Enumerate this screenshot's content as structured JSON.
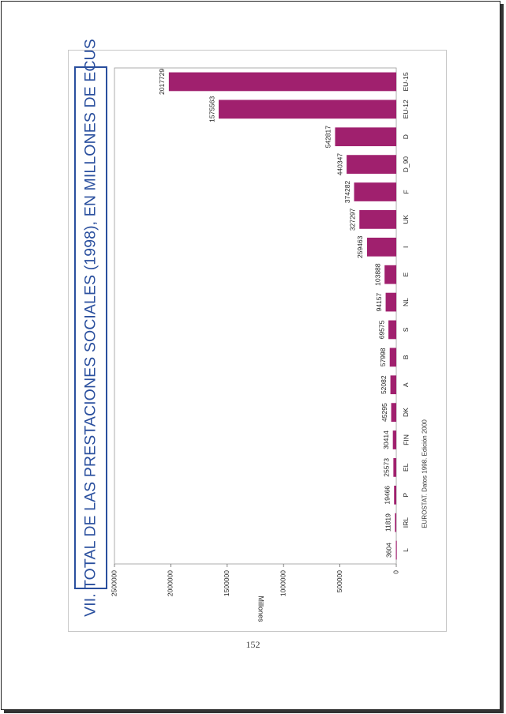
{
  "page": {
    "page_number": "152",
    "source": "EUROSTAT. Datos 1998. Edición 2000"
  },
  "chart_data": {
    "type": "bar",
    "orientation": "horizontal-rotated",
    "title": "VII. TOTAL DE LAS PRESTACIONES SOCIALES (1998), EN MILLONES DE ECUS",
    "ylabel": "Millones",
    "ylim": [
      0,
      2500000
    ],
    "yticks": [
      "0",
      "500000",
      "1000000",
      "1500000",
      "2000000",
      "2500000"
    ],
    "categories": [
      "L",
      "IRL",
      "P",
      "EL",
      "FIN",
      "DK",
      "A",
      "B",
      "S",
      "NL",
      "E",
      "I",
      "UK",
      "F",
      "D_90",
      "D",
      "EU-12",
      "EU-15"
    ],
    "values": [
      3604,
      11819,
      19466,
      25573,
      30414,
      45295,
      52082,
      57998,
      69575,
      94157,
      103888,
      259463,
      327297,
      374282,
      440347,
      542817,
      1575563,
      2017729
    ],
    "value_labels": [
      "3604",
      "11819",
      "19466",
      "25573",
      "30414",
      "45295",
      "52082",
      "57998",
      "69575",
      "94157",
      "103888",
      "259463",
      "327297",
      "374282",
      "440347",
      "542817",
      "1575563",
      "2017729"
    ],
    "bar_color": "#a0206e",
    "grid": false,
    "legend": "none"
  }
}
